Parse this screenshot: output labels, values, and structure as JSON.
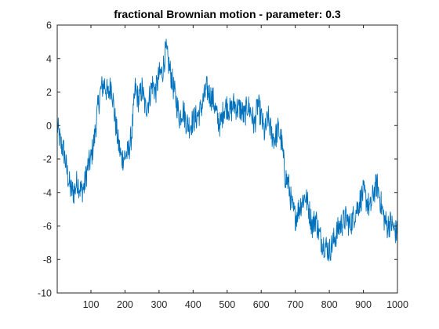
{
  "chart_data": {
    "type": "line",
    "title": "fractional Brownian motion - parameter: 0.3",
    "xlabel": "",
    "ylabel": "",
    "xlim": [
      1,
      1000
    ],
    "ylim": [
      -10,
      6
    ],
    "xticks": [
      100,
      200,
      300,
      400,
      500,
      600,
      700,
      800,
      900,
      1000
    ],
    "yticks": [
      -10,
      -8,
      -6,
      -4,
      -2,
      0,
      2,
      4,
      6
    ],
    "grid": false,
    "box": true,
    "series": [
      {
        "color": "#0072BD",
        "x": [
          1,
          10,
          20,
          30,
          40,
          50,
          60,
          70,
          80,
          90,
          100,
          110,
          120,
          130,
          140,
          150,
          160,
          170,
          180,
          190,
          200,
          210,
          220,
          230,
          240,
          250,
          260,
          270,
          280,
          290,
          300,
          310,
          320,
          330,
          340,
          350,
          360,
          370,
          380,
          390,
          400,
          410,
          420,
          430,
          440,
          450,
          460,
          470,
          480,
          490,
          500,
          510,
          520,
          530,
          540,
          550,
          560,
          570,
          580,
          590,
          600,
          610,
          620,
          630,
          640,
          650,
          660,
          670,
          680,
          690,
          700,
          710,
          720,
          730,
          740,
          750,
          760,
          770,
          780,
          790,
          800,
          810,
          820,
          830,
          840,
          850,
          860,
          870,
          880,
          890,
          900,
          910,
          920,
          930,
          940,
          950,
          960,
          970,
          980,
          990,
          1000
        ],
        "y": [
          0.0,
          -1.0,
          -1.5,
          -2.8,
          -3.8,
          -4.0,
          -3.3,
          -3.9,
          -3.7,
          -2.5,
          -2.0,
          -0.8,
          1.0,
          2.2,
          2.5,
          1.8,
          2.5,
          0.5,
          -1.0,
          -2.0,
          -1.8,
          -1.6,
          -0.5,
          2.2,
          1.5,
          2.2,
          1.0,
          1.5,
          2.5,
          2.0,
          3.0,
          3.2,
          4.5,
          3.5,
          2.5,
          1.5,
          0.5,
          1.0,
          0.2,
          0.0,
          0.3,
          0.5,
          0.8,
          1.5,
          2.2,
          1.8,
          1.5,
          0.5,
          0.0,
          1.0,
          1.2,
          0.8,
          1.3,
          1.0,
          1.0,
          0.5,
          1.2,
          0.8,
          0.0,
          1.3,
          0.5,
          -0.5,
          0.5,
          -0.5,
          -0.8,
          -0.2,
          -1.0,
          -3.0,
          -3.5,
          -4.8,
          -5.5,
          -5.0,
          -4.5,
          -4.2,
          -5.0,
          -6.0,
          -5.5,
          -6.5,
          -7.0,
          -7.2,
          -7.5,
          -7.0,
          -6.5,
          -6.0,
          -5.8,
          -5.5,
          -6.0,
          -5.5,
          -5.0,
          -4.5,
          -4.0,
          -4.5,
          -5.0,
          -4.0,
          -3.5,
          -4.5,
          -5.5,
          -6.0,
          -5.8,
          -6.2,
          -6.5
        ]
      }
    ]
  }
}
